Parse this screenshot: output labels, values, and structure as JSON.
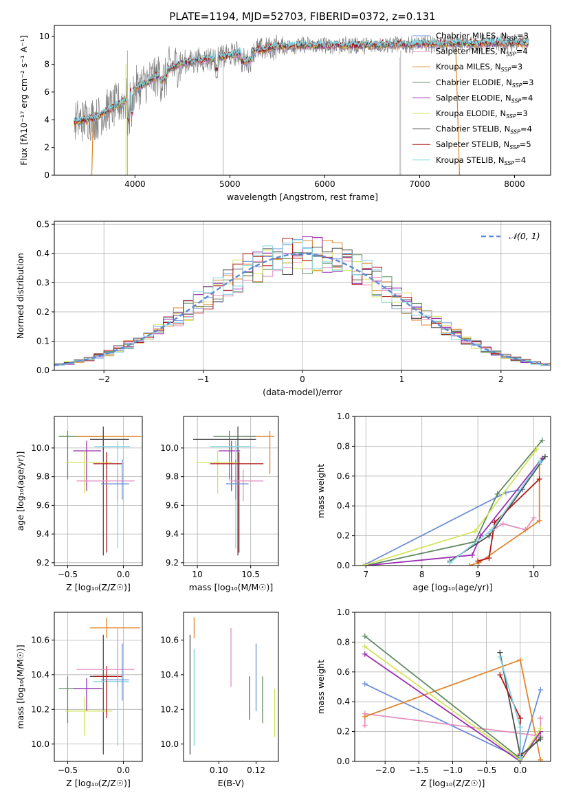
{
  "figure": {
    "title": "PLATE=1194, MJD=52703, FIBERID=0372, z=0.131"
  },
  "chart_data": [
    {
      "id": "spectrum",
      "type": "line",
      "xlabel": "wavelength [Angstrom, rest frame]",
      "ylabel": "Flux [fλ10⁻¹⁷ erg cm⁻² s⁻¹ A⁻¹]",
      "xlim": [
        3150,
        8380
      ],
      "ylim": [
        0,
        10.8
      ],
      "xticks": [
        4000,
        5000,
        6000,
        7000,
        8000
      ],
      "yticks": [
        0,
        2,
        4,
        6,
        8,
        10
      ],
      "grid": false,
      "legend_position": "right",
      "data_series": {
        "name": "",
        "color": "#808080"
      },
      "series": [
        {
          "name": "Chabrier MILES, N_SSP=3",
          "color": "#6b8fd8"
        },
        {
          "name": "Salpeter MILES, N_SSP=4",
          "color": "#e58fbf"
        },
        {
          "name": "Kroupa MILES, N_SSP=3",
          "color": "#e0842a"
        },
        {
          "name": "Chabrier ELODIE, N_SSP=3",
          "color": "#5e8a62"
        },
        {
          "name": "Salpeter ELODIE, N_SSP=4",
          "color": "#9a2fb2"
        },
        {
          "name": "Kroupa ELODIE, N_SSP=3",
          "color": "#d3e45a"
        },
        {
          "name": "Chabrier STELIB, N_SSP=4",
          "color": "#4d4d4d"
        },
        {
          "name": "Salpeter STELIB, N_SSP=5",
          "color": "#b01515"
        },
        {
          "name": "Kroupa STELIB, N_SSP=4",
          "color": "#7fd6e2"
        }
      ]
    },
    {
      "id": "residuals",
      "type": "histogram",
      "xlabel": "(data-model)/error",
      "ylabel": "Normed distribution",
      "xlim": [
        -2.5,
        2.5
      ],
      "ylim": [
        0,
        0.51
      ],
      "xticks": [
        -2,
        -1,
        0,
        1,
        2
      ],
      "xticklabels": [
        "−2",
        "−1",
        "0",
        "1",
        "2"
      ],
      "yticks": [
        0,
        0.1,
        0.2,
        0.3,
        0.4,
        0.5
      ],
      "grid": true,
      "legend_position": "top-right",
      "reference": {
        "name": "𝒩(0, 1)",
        "color": "#5a8ad6",
        "mean": 0,
        "sigma": 1
      }
    },
    {
      "id": "age_vs_Z",
      "type": "errorbar",
      "xlabel": "Z [log₁₀(Z/Z☉)]",
      "ylabel": "age  [log₁₀(age/yr)]",
      "xlim": [
        -0.62,
        0.17
      ],
      "ylim": [
        9.18,
        10.22
      ],
      "xticks": [
        -0.5,
        0.0
      ],
      "xticklabels": [
        "−0.5",
        "0.0"
      ],
      "yticks": [
        9.2,
        9.4,
        9.6,
        9.8,
        10.0
      ],
      "grid": true,
      "points": [
        {
          "color": "#5e8a62",
          "x": -0.5,
          "xlo": -0.58,
          "xhi": -0.18,
          "y": 10.08,
          "ylo": 9.78,
          "yhi": 10.12
        },
        {
          "color": "#e0842a",
          "x": -0.18,
          "xlo": -0.42,
          "xhi": 0.16,
          "y": 10.08,
          "ylo": 9.98,
          "yhi": 10.12
        },
        {
          "color": "#4d4d4d",
          "x": -0.18,
          "xlo": -0.3,
          "xhi": 0.05,
          "y": 10.06,
          "ylo": 9.25,
          "yhi": 10.15
        },
        {
          "color": "#7fd6e2",
          "x": -0.05,
          "xlo": -0.26,
          "xhi": 0.06,
          "y": 10.01,
          "ylo": 9.3,
          "yhi": 10.05
        },
        {
          "color": "#9a2fb2",
          "x": -0.33,
          "xlo": -0.45,
          "xhi": -0.2,
          "y": 9.98,
          "ylo": 9.7,
          "yhi": 10.05
        },
        {
          "color": "#d3e45a",
          "x": -0.35,
          "xlo": -0.52,
          "xhi": -0.1,
          "y": 9.9,
          "ylo": 9.68,
          "yhi": 9.98
        },
        {
          "color": "#b01515",
          "x": -0.15,
          "xlo": -0.27,
          "xhi": -0.01,
          "y": 9.89,
          "ylo": 9.27,
          "yhi": 9.97
        },
        {
          "color": "#e58fbf",
          "x": -0.05,
          "xlo": -0.42,
          "xhi": 0.1,
          "y": 9.77,
          "ylo": 9.63,
          "yhi": 9.85
        },
        {
          "color": "#6b8fd8",
          "x": -0.01,
          "xlo": -0.2,
          "xhi": 0.05,
          "y": 9.75,
          "ylo": 9.64,
          "yhi": 9.92
        }
      ]
    },
    {
      "id": "age_vs_mass",
      "type": "errorbar",
      "xlabel": "mass [log₁₀(M/M☉)]",
      "ylabel": "",
      "xlim": [
        9.87,
        10.76
      ],
      "ylim": [
        9.18,
        10.22
      ],
      "xticks": [
        10.0,
        10.5
      ],
      "yticks": [
        9.2,
        9.4,
        9.6,
        9.8,
        10.0
      ],
      "grid": true,
      "points": [
        {
          "color": "#e0842a",
          "x": 10.68,
          "xlo": 10.44,
          "xhi": 10.72,
          "y": 10.08,
          "ylo": 9.82,
          "yhi": 10.12
        },
        {
          "color": "#5e8a62",
          "x": 10.3,
          "xlo": 10.15,
          "xhi": 10.55,
          "y": 10.08,
          "ylo": 9.78,
          "yhi": 10.12
        },
        {
          "color": "#4d4d4d",
          "x": 10.38,
          "xlo": 9.96,
          "xhi": 10.55,
          "y": 10.06,
          "ylo": 9.25,
          "yhi": 10.15
        },
        {
          "color": "#9a2fb2",
          "x": 10.32,
          "xlo": 10.2,
          "xhi": 10.4,
          "y": 9.98,
          "ylo": 9.7,
          "yhi": 10.05
        },
        {
          "color": "#7fd6e2",
          "x": 10.36,
          "xlo": 10.12,
          "xhi": 10.5,
          "y": 10.01,
          "ylo": 9.3,
          "yhi": 10.05
        },
        {
          "color": "#d3e45a",
          "x": 10.19,
          "xlo": 9.99,
          "xhi": 10.4,
          "y": 9.9,
          "ylo": 9.68,
          "yhi": 9.98
        },
        {
          "color": "#b01515",
          "x": 10.39,
          "xlo": 10.12,
          "xhi": 10.62,
          "y": 9.89,
          "ylo": 9.27,
          "yhi": 9.97
        },
        {
          "color": "#e58fbf",
          "x": 10.43,
          "xlo": 10.3,
          "xhi": 10.62,
          "y": 9.77,
          "ylo": 9.63,
          "yhi": 9.85
        },
        {
          "color": "#6b8fd8",
          "x": 10.36,
          "xlo": 10.27,
          "xhi": 10.48,
          "y": 9.75,
          "ylo": 9.64,
          "yhi": 9.92
        }
      ]
    },
    {
      "id": "weight_vs_age",
      "type": "line",
      "xlabel": "age  [log₁₀(age/yr)]",
      "ylabel": "mass weight",
      "xlim": [
        6.8,
        10.3
      ],
      "ylim": [
        0,
        1.0
      ],
      "xticks": [
        7,
        8,
        9,
        10
      ],
      "yticks": [
        0.0,
        0.2,
        0.4,
        0.6,
        0.8,
        1.0
      ],
      "grid": true,
      "series": [
        {
          "color": "#6b8fd8",
          "points": [
            [
              6.95,
              0.0
            ],
            [
              9.5,
              0.49
            ],
            [
              9.8,
              0.51
            ]
          ]
        },
        {
          "color": "#e58fbf",
          "points": [
            [
              9.3,
              0.25
            ],
            [
              9.45,
              0.28
            ],
            [
              9.85,
              0.24
            ],
            [
              10.0,
              0.32
            ]
          ]
        },
        {
          "color": "#e0842a",
          "points": [
            [
              8.85,
              0.0
            ],
            [
              9.02,
              0.02
            ],
            [
              10.1,
              0.3
            ],
            [
              10.1,
              0.68
            ]
          ]
        },
        {
          "color": "#5e8a62",
          "points": [
            [
              7.0,
              0.0
            ],
            [
              8.95,
              0.16
            ],
            [
              9.35,
              0.48
            ],
            [
              10.15,
              0.84
            ]
          ]
        },
        {
          "color": "#9a2fb2",
          "points": [
            [
              7.0,
              0.0
            ],
            [
              8.9,
              0.07
            ],
            [
              9.05,
              0.2
            ],
            [
              10.15,
              0.72
            ]
          ]
        },
        {
          "color": "#d3e45a",
          "points": [
            [
              6.95,
              0.0
            ],
            [
              8.95,
              0.23
            ],
            [
              10.05,
              0.78
            ]
          ]
        },
        {
          "color": "#4d4d4d",
          "points": [
            [
              8.5,
              0.03
            ],
            [
              9.2,
              0.2
            ],
            [
              10.2,
              0.73
            ]
          ]
        },
        {
          "color": "#b01515",
          "points": [
            [
              9.0,
              0.03
            ],
            [
              9.2,
              0.05
            ],
            [
              9.3,
              0.29
            ],
            [
              10.1,
              0.58
            ]
          ]
        },
        {
          "color": "#7fd6e2",
          "points": [
            [
              8.5,
              0.02
            ],
            [
              9.25,
              0.24
            ],
            [
              10.12,
              0.7
            ]
          ]
        }
      ]
    },
    {
      "id": "mass_vs_Z",
      "type": "errorbar",
      "xlabel": "Z [log₁₀(Z/Z☉)]",
      "ylabel": "mass [log₁₀(M/M☉)]",
      "xlim": [
        -0.62,
        0.17
      ],
      "ylim": [
        9.9,
        10.76
      ],
      "xticks": [
        -0.5,
        0.0
      ],
      "xticklabels": [
        "−0.5",
        "0.0"
      ],
      "yticks": [
        10.0,
        10.2,
        10.4,
        10.6
      ],
      "grid": true,
      "points": [
        {
          "color": "#e0842a",
          "x": -0.15,
          "xlo": -0.3,
          "xhi": 0.15,
          "y": 10.67,
          "ylo": 10.61,
          "yhi": 10.73
        },
        {
          "color": "#5e8a62",
          "x": -0.5,
          "xlo": -0.58,
          "xhi": -0.18,
          "y": 10.32,
          "ylo": 10.12,
          "yhi": 10.39
        },
        {
          "color": "#4d4d4d",
          "x": -0.18,
          "xlo": -0.3,
          "xhi": -0.05,
          "y": 10.39,
          "ylo": 9.94,
          "yhi": 10.63
        },
        {
          "color": "#7fd6e2",
          "x": -0.05,
          "xlo": -0.27,
          "xhi": 0.05,
          "y": 10.36,
          "ylo": 9.99,
          "yhi": 10.55
        },
        {
          "color": "#9a2fb2",
          "x": -0.33,
          "xlo": -0.45,
          "xhi": -0.2,
          "y": 10.32,
          "ylo": 10.19,
          "yhi": 10.38
        },
        {
          "color": "#d3e45a",
          "x": -0.35,
          "xlo": -0.52,
          "xhi": -0.1,
          "y": 10.19,
          "ylo": 10.05,
          "yhi": 10.27
        },
        {
          "color": "#b01515",
          "x": -0.15,
          "xlo": -0.27,
          "xhi": -0.01,
          "y": 10.39,
          "ylo": 10.15,
          "yhi": 10.45
        },
        {
          "color": "#e58fbf",
          "x": -0.05,
          "xlo": -0.42,
          "xhi": 0.1,
          "y": 10.43,
          "ylo": 10.33,
          "yhi": 10.67
        },
        {
          "color": "#6b8fd8",
          "x": -0.01,
          "xlo": -0.2,
          "xhi": 0.05,
          "y": 10.37,
          "ylo": 10.25,
          "yhi": 10.58
        }
      ]
    },
    {
      "id": "mass_vs_ebv",
      "type": "errorbar",
      "xlabel": "E(B-V)",
      "ylabel": "",
      "xlim": [
        0.081,
        0.132
      ],
      "ylim": [
        9.9,
        10.76
      ],
      "xticks": [
        0.1,
        0.12
      ],
      "xticklabels": [
        "0.10",
        "0.12"
      ],
      "yticks": [
        10.0,
        10.2,
        10.4,
        10.6
      ],
      "grid": false,
      "points": [
        {
          "color": "#4d4d4d",
          "x": 0.0845,
          "y": 10.28,
          "ylo": 9.94,
          "yhi": 10.63
        },
        {
          "color": "#e0842a",
          "x": 0.0867,
          "y": 10.67,
          "ylo": 10.61,
          "yhi": 10.73
        },
        {
          "color": "#7fd6e2",
          "x": 0.0867,
          "y": 10.3,
          "ylo": 9.99,
          "yhi": 10.55
        },
        {
          "color": "#e58fbf",
          "x": 0.1065,
          "y": 10.5,
          "ylo": 10.33,
          "yhi": 10.67
        },
        {
          "color": "#9a2fb2",
          "x": 0.1165,
          "y": 10.22,
          "ylo": 10.14,
          "yhi": 10.39
        },
        {
          "color": "#6b8fd8",
          "x": 0.12,
          "y": 10.4,
          "ylo": 10.19,
          "yhi": 10.58
        },
        {
          "color": "#5e8a62",
          "x": 0.1235,
          "y": 10.26,
          "ylo": 10.12,
          "yhi": 10.39
        },
        {
          "color": "#d3e45a",
          "x": 0.13,
          "y": 10.18,
          "ylo": 10.04,
          "yhi": 10.32
        }
      ]
    },
    {
      "id": "weight_vs_Z",
      "type": "line",
      "xlabel": "Z [log₁₀(Z/Z☉)]",
      "ylabel": "mass weight",
      "xlim": [
        -2.45,
        0.45
      ],
      "ylim": [
        0,
        1.0
      ],
      "xticks": [
        -2.0,
        -1.5,
        -1.0,
        -0.5,
        0.0
      ],
      "xticklabels": [
        "−2.0",
        "−1.5",
        "−1.0",
        "−0.5",
        "0.0"
      ],
      "yticks": [
        0.0,
        0.2,
        0.4,
        0.6,
        0.8,
        1.0
      ],
      "grid": true,
      "series": [
        {
          "color": "#6b8fd8",
          "points": [
            [
              -2.3,
              0.52
            ],
            [
              0.0,
              0.02
            ],
            [
              0.3,
              0.48
            ]
          ]
        },
        {
          "color": "#e58fbf",
          "points": [
            [
              -2.3,
              0.24
            ],
            [
              -2.3,
              0.32
            ],
            [
              0.3,
              0.17
            ],
            [
              0.3,
              0.29
            ]
          ]
        },
        {
          "color": "#e0842a",
          "points": [
            [
              -2.3,
              0.3
            ],
            [
              0.0,
              0.68
            ],
            [
              0.3,
              0.01
            ]
          ]
        },
        {
          "color": "#5e8a62",
          "points": [
            [
              -2.3,
              0.84
            ],
            [
              0.0,
              0.02
            ],
            [
              0.3,
              0.16
            ]
          ]
        },
        {
          "color": "#9a2fb2",
          "points": [
            [
              -2.3,
              0.72
            ],
            [
              0.0,
              0.0
            ],
            [
              0.3,
              0.2
            ]
          ]
        },
        {
          "color": "#d3e45a",
          "points": [
            [
              -2.3,
              0.77
            ],
            [
              0.0,
              0.01
            ],
            [
              0.3,
              0.22
            ]
          ]
        },
        {
          "color": "#4d4d4d",
          "points": [
            [
              -0.3,
              0.73
            ],
            [
              0.0,
              0.04
            ],
            [
              0.3,
              0.15
            ]
          ]
        },
        {
          "color": "#b01515",
          "points": [
            [
              -0.3,
              0.58
            ],
            [
              0.0,
              0.29
            ],
            [
              0.0,
              0.05
            ]
          ]
        },
        {
          "color": "#7fd6e2",
          "points": [
            [
              -0.3,
              0.7
            ],
            [
              0.0,
              0.23
            ],
            [
              0.0,
              0.02
            ]
          ]
        }
      ]
    }
  ]
}
